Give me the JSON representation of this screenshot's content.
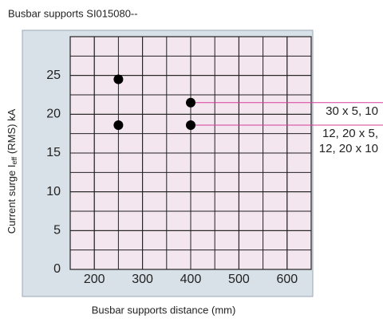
{
  "chart_data": {
    "type": "scatter",
    "title": "Busbar supports SI015080--",
    "x_label": "Busbar supports distance (mm)",
    "y_label": {
      "prefix": "Current surge I",
      "subscript": "eff",
      "suffix": " (RMS) kA"
    },
    "x": [
      250,
      400,
      250,
      400
    ],
    "values": [
      24.5,
      21.5,
      18.6,
      18.6
    ],
    "color": "#000000",
    "xlim": [
      150,
      650
    ],
    "xticks": [
      200,
      300,
      400,
      500,
      600
    ],
    "ylim": [
      0,
      30
    ],
    "yticks": [
      0,
      5,
      10,
      15,
      20,
      25
    ],
    "grid": true,
    "annotations": [
      "30 x 5, 10",
      "12, 20 x 5,",
      "12, 20 x 10"
    ]
  }
}
